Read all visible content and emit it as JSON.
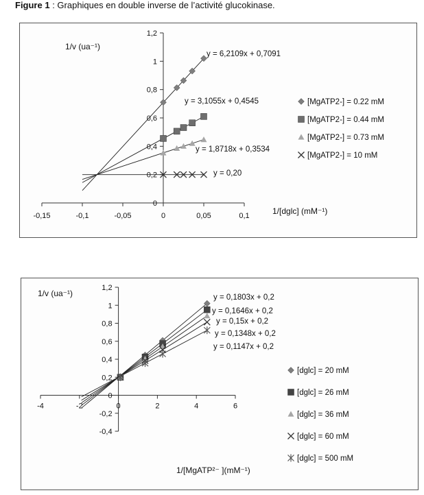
{
  "figure": {
    "title_bold": "Figure 1",
    "title_rest": " : Graphiques en double inverse  de l’activité glucokinase."
  },
  "chart_data": [
    {
      "type": "scatter",
      "xlabel": "1/[dglc] (mM⁻¹)",
      "ylabel": "1/v (ua⁻¹)",
      "xlim": [
        -0.15,
        0.1
      ],
      "ylim": [
        0,
        1.2
      ],
      "xticks": [
        "-0,15",
        "-0,1",
        "-0,05",
        "0",
        "0,05",
        "0,1"
      ],
      "yticks": [
        "0",
        "0,2",
        "0,4",
        "0,6",
        "0,8",
        "1",
        "1,2"
      ],
      "grid": false,
      "legend": "right",
      "series": [
        {
          "name": "[MgATP2-] = 0.22 mM",
          "marker": "diamond",
          "color": "#7f7f7f",
          "x": [
            0,
            0.0167,
            0.025,
            0.0357,
            0.05
          ],
          "y": [
            0.71,
            0.813,
            0.864,
            0.931,
            1.02
          ],
          "equation": "y = 6,2109x + 0,7091",
          "slope": 6.2109,
          "intercept": 0.7091
        },
        {
          "name": "[MgATP2-] = 0.44 mM",
          "marker": "square",
          "color": "#6e6e6e",
          "x": [
            0,
            0.0167,
            0.025,
            0.0357,
            0.05
          ],
          "y": [
            0.455,
            0.506,
            0.532,
            0.565,
            0.61
          ],
          "equation": "y = 3,1055x + 0,4545",
          "slope": 3.1055,
          "intercept": 0.4545
        },
        {
          "name": "[MgATP2-] = 0.73 mM",
          "marker": "triangle",
          "color": "#a6a6a6",
          "x": [
            0,
            0.0167,
            0.025,
            0.0357,
            0.05
          ],
          "y": [
            0.353,
            0.385,
            0.4,
            0.42,
            0.447
          ],
          "equation": "y = 1,8718x + 0,3534",
          "slope": 1.8718,
          "intercept": 0.3534
        },
        {
          "name": "[MgATP2-] = 10 mM",
          "marker": "x",
          "color": "#333333",
          "x": [
            0,
            0.0167,
            0.025,
            0.0357,
            0.05
          ],
          "y": [
            0.2,
            0.2,
            0.2,
            0.2,
            0.2
          ],
          "equation": "y = 0,20",
          "slope": 0,
          "intercept": 0.2
        }
      ]
    },
    {
      "type": "scatter",
      "xlabel": "1/[MgATP²⁻ ](mM⁻¹)",
      "ylabel": "1/v (ua⁻¹)",
      "xlim": [
        -4,
        6
      ],
      "ylim": [
        -0.4,
        1.2
      ],
      "xticks": [
        "-4",
        "-2",
        "0",
        "2",
        "4",
        "6"
      ],
      "yticks": [
        "-0,4",
        "-0,2",
        "0",
        "0,2",
        "0,4",
        "0,6",
        "0,8",
        "1",
        "1,2"
      ],
      "grid": false,
      "legend": "right",
      "series": [
        {
          "name": "[dglc] = 20 mM",
          "marker": "diamond",
          "color": "#7f7f7f",
          "x": [
            0.1,
            1.37,
            2.27,
            4.55
          ],
          "y": [
            0.2,
            0.447,
            0.609,
            1.02
          ],
          "equation": "y = 0,1803x + 0,2",
          "slope": 0.1803,
          "intercept": 0.2
        },
        {
          "name": "[dglc] = 26 mM",
          "marker": "square",
          "color": "#444444",
          "x": [
            0.1,
            1.37,
            2.27,
            4.55
          ],
          "y": [
            0.2,
            0.425,
            0.574,
            0.95
          ],
          "equation": "y = 0,1646x + 0,2",
          "slope": 0.1646,
          "intercept": 0.2
        },
        {
          "name": "[dglc] = 36 mM",
          "marker": "triangle",
          "color": "#a6a6a6",
          "x": [
            0.1,
            1.37,
            2.27,
            4.55
          ],
          "y": [
            0.2,
            0.405,
            0.541,
            0.883
          ],
          "equation": "y = 0,15x + 0,2",
          "slope": 0.15,
          "intercept": 0.2
        },
        {
          "name": "[dglc] = 60 mM",
          "marker": "x",
          "color": "#333333",
          "x": [
            0.1,
            1.37,
            2.27,
            4.55
          ],
          "y": [
            0.2,
            0.384,
            0.506,
            0.813
          ],
          "equation": "y = 0,1348x + 0,2",
          "slope": 0.1348,
          "intercept": 0.2
        },
        {
          "name": "[dglc] = 500 mM",
          "marker": "star",
          "color": "#555555",
          "x": [
            0.1,
            1.37,
            2.27,
            4.55
          ],
          "y": [
            0.2,
            0.357,
            0.46,
            0.722
          ],
          "equation": "y = 0,1147x + 0,2",
          "slope": 0.1147,
          "intercept": 0.2
        }
      ]
    }
  ]
}
